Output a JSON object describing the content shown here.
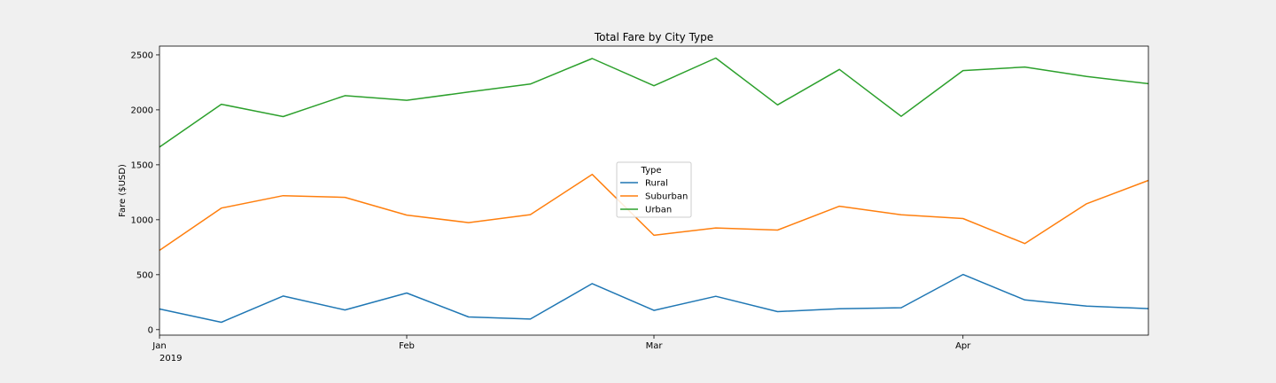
{
  "chart_data": {
    "type": "line",
    "title": "Total Fare by City Type",
    "xlabel": "",
    "ylabel": "Fare ($USD)",
    "ylim": [
      -50,
      2580
    ],
    "yticks": [
      0,
      500,
      1000,
      1500,
      2000,
      2500
    ],
    "x_weeks": [
      "2019-01-06",
      "2019-01-13",
      "2019-01-20",
      "2019-01-27",
      "2019-02-03",
      "2019-02-10",
      "2019-02-17",
      "2019-02-24",
      "2019-03-03",
      "2019-03-10",
      "2019-03-17",
      "2019-03-24",
      "2019-03-31",
      "2019-04-07",
      "2019-04-14",
      "2019-04-21",
      "2019-04-28"
    ],
    "xticks": [
      {
        "label": "Jan",
        "sublabel": "2019",
        "week_index": 0
      },
      {
        "label": "Feb",
        "sublabel": "",
        "week_index": 4
      },
      {
        "label": "Mar",
        "sublabel": "",
        "week_index": 8
      },
      {
        "label": "Apr",
        "sublabel": "",
        "week_index": 13
      }
    ],
    "legend": {
      "title": "Type",
      "position": "center"
    },
    "series": [
      {
        "name": "Rural",
        "color": "#1f77b4",
        "values": [
          188,
          67,
          306,
          179,
          333,
          115,
          96,
          419,
          175,
          303,
          164,
          190,
          199,
          502,
          270,
          214,
          191
        ]
      },
      {
        "name": "Suburban",
        "color": "#ff7f0e",
        "values": [
          721,
          1106,
          1219,
          1204,
          1042,
          974,
          1046,
          1413,
          858,
          925,
          906,
          1123,
          1045,
          1011,
          783,
          1146,
          1358
        ]
      },
      {
        "name": "Urban",
        "color": "#2ca02c",
        "values": [
          1661,
          2051,
          1939,
          2129,
          2087,
          2162,
          2235,
          2467,
          2219,
          2471,
          2045,
          2368,
          1941,
          2357,
          2390,
          2304,
          2238
        ]
      }
    ]
  }
}
